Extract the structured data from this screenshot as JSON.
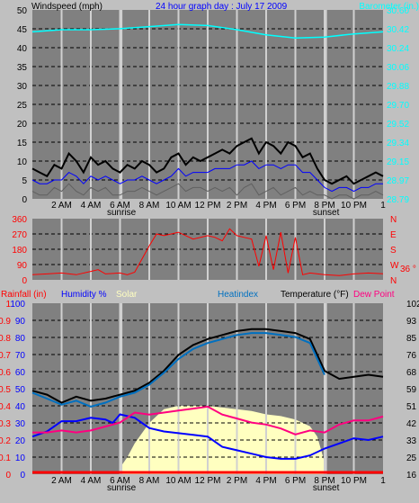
{
  "header": {
    "left_label": "Windspeed (mph)",
    "title": "24 hour graph day : July 17 2009",
    "right_label": "Barometer (in.)"
  },
  "x_axis": {
    "ticks": [
      "2 AM",
      "4 AM",
      "6 AM",
      "8 AM",
      "10 AM",
      "12 PM",
      "2 PM",
      "4 PM",
      "6 PM",
      "8 PM",
      "10 PM"
    ],
    "hours": [
      2,
      4,
      6,
      8,
      10,
      12,
      14,
      16,
      18,
      20,
      22
    ],
    "sunrise_label": "sunrise",
    "sunset_label": "sunset",
    "sunrise_hour": 6.1,
    "sunset_hour": 20.1,
    "end_label": "1"
  },
  "panel2": {
    "compass_letters": [
      "N",
      "W",
      "S",
      "E",
      "N"
    ],
    "current_reading": "36 °"
  },
  "panel3": {
    "labels": {
      "rain": "Rainfall (in)",
      "humidity": "Humidity %",
      "solar": "Solar",
      "heat": "Heatindex",
      "temperature": "Temperature (°F)",
      "dew": "Dew Point"
    }
  },
  "colors": {
    "background": "#c0c0c0",
    "plot": "#808080",
    "wind_gust": "#000000",
    "wind_avg": "#0000ff",
    "wind_min": "#606060",
    "barometer": "#00ffff",
    "direction": "#ff0000",
    "temperature": "#000000",
    "heatindex": "#0070c0",
    "humidity": "#0000ff",
    "dewpoint": "#ff0080",
    "solar": "#ffffc0",
    "rain": "#ff0000"
  },
  "chart_data": [
    {
      "type": "line",
      "name": "wind-barometer",
      "xlim": [
        0,
        24
      ],
      "left_axis": {
        "label": "Windspeed (mph)",
        "ylim": [
          0,
          50
        ],
        "ticks": [
          "0",
          "5",
          "10",
          "15",
          "20",
          "25",
          "30",
          "35",
          "40",
          "45",
          "50"
        ]
      },
      "right_axis": {
        "label": "Barometer (in.)",
        "ylim": [
          28.79,
          30.6
        ],
        "ticks": [
          "28.79",
          "28.97",
          "29.15",
          "29.34",
          "29.52",
          "29.70",
          "29.88",
          "30.06",
          "30.24",
          "30.42",
          "30.60"
        ]
      },
      "series": [
        {
          "key": "wind_gust",
          "axis": "left",
          "x": [
            0,
            0.5,
            1,
            1.5,
            2,
            2.5,
            3,
            3.5,
            4,
            4.5,
            5,
            5.5,
            6,
            6.5,
            7,
            7.5,
            8,
            8.5,
            9,
            9.5,
            10,
            10.5,
            11,
            11.5,
            12,
            12.5,
            13,
            13.5,
            14,
            14.5,
            15,
            15.5,
            16,
            16.5,
            17,
            17.5,
            18,
            18.5,
            19,
            19.5,
            20,
            20.5,
            21,
            21.5,
            22,
            22.5,
            23,
            23.5,
            24
          ],
          "values": [
            8,
            7,
            6,
            9,
            8,
            12,
            10,
            7,
            11,
            9,
            10,
            8,
            7,
            9,
            8,
            10,
            9,
            7,
            8,
            11,
            12,
            9,
            11,
            10,
            11,
            12,
            13,
            12,
            14,
            15,
            16,
            12,
            15,
            14,
            12,
            15,
            14,
            11,
            12,
            8,
            5,
            4,
            5,
            6,
            4,
            5,
            6,
            7,
            6
          ]
        },
        {
          "key": "wind_avg",
          "axis": "left",
          "x": [
            0,
            0.5,
            1,
            1.5,
            2,
            2.5,
            3,
            3.5,
            4,
            4.5,
            5,
            5.5,
            6,
            6.5,
            7,
            7.5,
            8,
            8.5,
            9,
            9.5,
            10,
            10.5,
            11,
            11.5,
            12,
            12.5,
            13,
            13.5,
            14,
            14.5,
            15,
            15.5,
            16,
            16.5,
            17,
            17.5,
            18,
            18.5,
            19,
            19.5,
            20,
            20.5,
            21,
            21.5,
            22,
            22.5,
            23,
            23.5,
            24
          ],
          "values": [
            5,
            4,
            4,
            5,
            5,
            7,
            6,
            4,
            6,
            5,
            6,
            5,
            4,
            5,
            5,
            6,
            5,
            4,
            5,
            6,
            8,
            6,
            7,
            7,
            7,
            8,
            8,
            8,
            9,
            9,
            10,
            8,
            9,
            9,
            8,
            9,
            9,
            7,
            7,
            5,
            3,
            2,
            3,
            3,
            2,
            3,
            3,
            4,
            4
          ]
        },
        {
          "key": "wind_min",
          "axis": "left",
          "x": [
            0,
            0.5,
            1,
            1.5,
            2,
            2.5,
            3,
            3.5,
            4,
            4.5,
            5,
            5.5,
            6,
            6.5,
            7,
            7.5,
            8,
            8.5,
            9,
            9.5,
            10,
            10.5,
            11,
            11.5,
            12,
            12.5,
            13,
            13.5,
            14,
            14.5,
            15,
            15.5,
            16,
            16.5,
            17,
            17.5,
            18,
            18.5,
            19,
            19.5,
            20,
            20.5,
            21,
            21.5,
            22,
            22.5,
            23,
            23.5,
            24
          ],
          "values": [
            2,
            1,
            1,
            3,
            2,
            4,
            2,
            1,
            3,
            2,
            3,
            1,
            1,
            2,
            2,
            3,
            2,
            1,
            2,
            3,
            4,
            2,
            3,
            3,
            2,
            3,
            2,
            3,
            1,
            3,
            4,
            1,
            2,
            3,
            1,
            2,
            3,
            1,
            2,
            1,
            1,
            0,
            1,
            1,
            0,
            1,
            1,
            2,
            1
          ]
        },
        {
          "key": "barometer",
          "axis": "right",
          "x": [
            0,
            2,
            4,
            6,
            8,
            10,
            12,
            14,
            16,
            18,
            20,
            22,
            24
          ],
          "values": [
            30.39,
            30.41,
            30.41,
            30.42,
            30.44,
            30.46,
            30.45,
            30.41,
            30.36,
            30.33,
            30.34,
            30.37,
            30.39
          ]
        }
      ]
    },
    {
      "type": "scatter",
      "name": "wind-direction",
      "xlim": [
        0,
        24
      ],
      "ylim": [
        0,
        360
      ],
      "ticks": [
        "0",
        "90",
        "180",
        "270",
        "360"
      ],
      "x": [
        0,
        1,
        2,
        3,
        4,
        4.5,
        5,
        6,
        6.5,
        7,
        8,
        8.5,
        9,
        10,
        11,
        12,
        12.5,
        13,
        13.5,
        14,
        14.5,
        15,
        15.5,
        16,
        16.5,
        17,
        17.5,
        18,
        18.5,
        19,
        20,
        21,
        22,
        23,
        24
      ],
      "values": [
        30,
        35,
        40,
        30,
        50,
        60,
        35,
        40,
        30,
        45,
        200,
        270,
        260,
        280,
        240,
        260,
        250,
        230,
        300,
        260,
        250,
        240,
        80,
        260,
        60,
        280,
        40,
        250,
        30,
        40,
        30,
        25,
        35,
        40,
        36
      ]
    },
    {
      "type": "line",
      "name": "temperature-humidity",
      "xlim": [
        0,
        24
      ],
      "left_axis_rain": {
        "label": "Rainfall (in)",
        "ylim": [
          0,
          1
        ],
        "ticks": [
          "0",
          "0.1",
          "0.2",
          "0.3",
          "0.4",
          "0.5",
          "0.6",
          "0.7",
          "0.8",
          "0.9",
          "1"
        ]
      },
      "left_axis_humidity": {
        "label": "Humidity %",
        "ylim": [
          0,
          100
        ],
        "ticks": [
          "0",
          "10",
          "20",
          "30",
          "40",
          "50",
          "60",
          "70",
          "80",
          "90",
          "100"
        ]
      },
      "right_axis": {
        "label": "Temperature (°F)",
        "ylim": [
          16,
          102
        ],
        "ticks": [
          "16",
          "25",
          "33",
          "42",
          "51",
          "59",
          "68",
          "76",
          "85",
          "93",
          "102"
        ]
      },
      "series": [
        {
          "key": "temperature",
          "axis": "right",
          "x": [
            0,
            1,
            2,
            3,
            4,
            5,
            6,
            7,
            8,
            9,
            10,
            11,
            12,
            13,
            14,
            15,
            16,
            17,
            18,
            19,
            19.5,
            20,
            21,
            22,
            23,
            24
          ],
          "values": [
            58,
            56,
            52,
            55,
            53,
            54,
            56,
            58,
            62,
            68,
            76,
            81,
            84,
            86,
            88,
            89,
            89,
            88,
            87,
            84,
            76,
            68,
            64,
            65,
            66,
            65
          ]
        },
        {
          "key": "heatindex",
          "axis": "right",
          "x": [
            0,
            1,
            2,
            3,
            4,
            5,
            6,
            7,
            8,
            9,
            10,
            11,
            12,
            13,
            14,
            15,
            16,
            17,
            18,
            19,
            19.5,
            20
          ],
          "values": [
            57,
            54,
            51,
            53,
            50,
            52,
            55,
            57,
            61,
            67,
            74,
            79,
            82,
            84,
            86,
            87,
            87,
            86,
            85,
            82,
            74,
            66
          ]
        },
        {
          "key": "humidity",
          "axis": "left_humidity",
          "x": [
            0,
            1,
            2,
            3,
            4,
            5,
            5.5,
            6,
            7,
            8,
            9,
            10,
            11,
            12,
            13,
            14,
            15,
            16,
            17,
            18,
            19,
            20,
            21,
            22,
            23,
            24
          ],
          "values": [
            22,
            25,
            31,
            31,
            33,
            32,
            30,
            35,
            33,
            27,
            25,
            24,
            23,
            22,
            16,
            14,
            12,
            10,
            9,
            9,
            11,
            15,
            18,
            21,
            20,
            22
          ]
        },
        {
          "key": "dewpoint",
          "axis": "right",
          "x": [
            0,
            1,
            2,
            3,
            4,
            5,
            6,
            7,
            8,
            9,
            10,
            11,
            12,
            13,
            14,
            15,
            16,
            17,
            18,
            19,
            20,
            21,
            22,
            23,
            24
          ],
          "values": [
            37,
            37,
            38,
            37,
            38,
            40,
            42,
            47,
            46,
            47,
            48,
            49,
            50,
            46,
            44,
            42,
            41,
            39,
            36,
            38,
            37,
            41,
            43,
            43,
            45
          ]
        },
        {
          "key": "solar",
          "axis": "left_humidity",
          "fill": true,
          "x": [
            6.1,
            6.5,
            7,
            8,
            9,
            10,
            11,
            12,
            13,
            14,
            15,
            16,
            17,
            18,
            19,
            19.5,
            20.1
          ],
          "values": [
            5,
            10,
            18,
            30,
            38,
            40,
            40,
            40,
            39,
            38,
            37,
            35,
            34,
            32,
            28,
            22,
            4
          ]
        },
        {
          "key": "rain",
          "axis": "left_rain",
          "x": [
            0,
            24
          ],
          "values": [
            0,
            0
          ]
        }
      ]
    }
  ]
}
